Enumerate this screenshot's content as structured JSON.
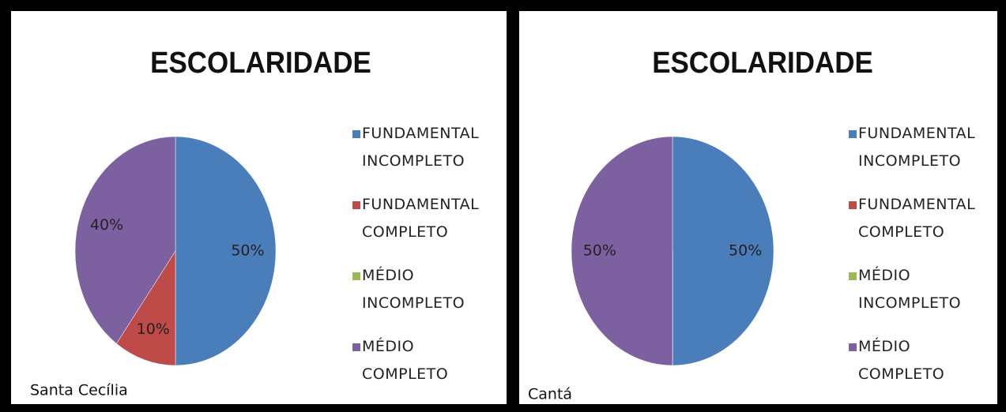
{
  "chart_data": [
    {
      "type": "pie",
      "title": "ESCOLARIDADE",
      "categories": [
        "FUNDAMENTAL INCOMPLETO",
        "FUNDAMENTAL COMPLETO",
        "MÉDIO INCOMPLETO",
        "MÉDIO COMPLETO"
      ],
      "values": [
        50,
        10,
        0,
        40
      ],
      "value_labels": [
        "50%",
        "10%",
        null,
        "40%"
      ],
      "colors": [
        "#4a7ebb",
        "#be4b48",
        "#98b954",
        "#7d60a0"
      ],
      "annotation": "Santa Cecília"
    },
    {
      "type": "pie",
      "title": "ESCOLARIDADE",
      "categories": [
        "FUNDAMENTAL INCOMPLETO",
        "FUNDAMENTAL COMPLETO",
        "MÉDIO INCOMPLETO",
        "MÉDIO COMPLETO"
      ],
      "values": [
        50,
        0,
        0,
        50
      ],
      "value_labels": [
        "50%",
        null,
        null,
        "50%"
      ],
      "colors": [
        "#4a7ebb",
        "#be4b48",
        "#98b954",
        "#7d60a0"
      ],
      "annotation": "Cantá"
    }
  ]
}
